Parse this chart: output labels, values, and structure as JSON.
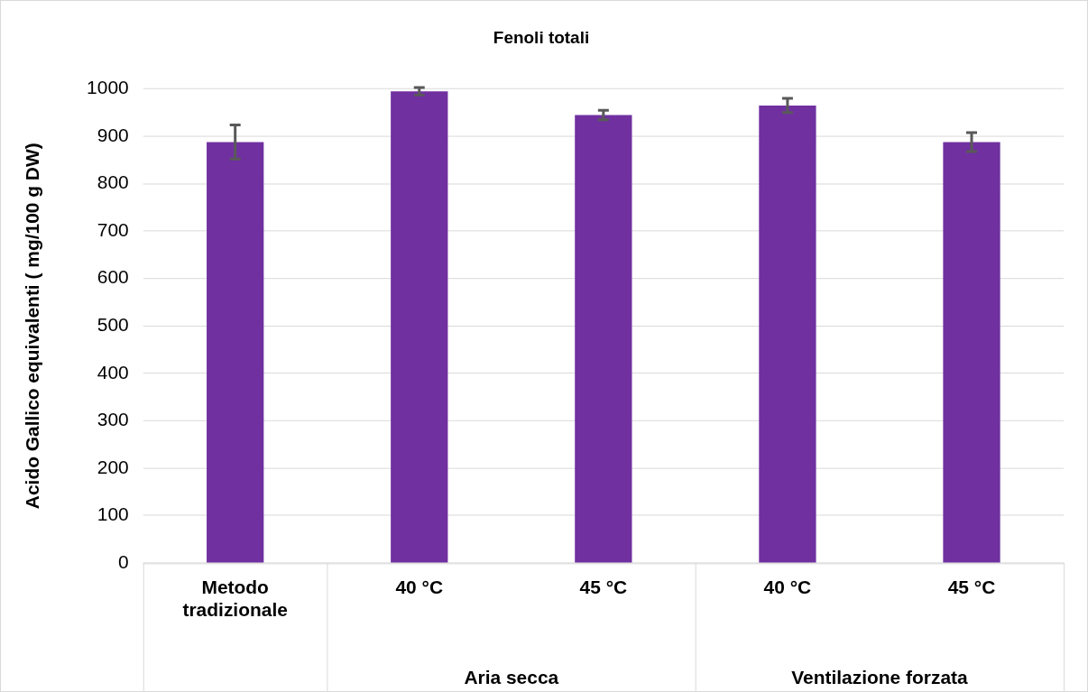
{
  "chart_data": {
    "type": "bar",
    "title": "Fenoli totali",
    "ylabel": "Acido Gallico equivalenti ( mg/100 g DW)",
    "categories": [
      "Metodo tradizionale",
      "40 °C",
      "45 °C",
      "40 °C",
      "45 °C"
    ],
    "values": [
      888,
      995,
      945,
      965,
      888
    ],
    "errors": [
      36,
      8,
      10,
      15,
      20
    ],
    "color": "#7030a0",
    "ylim": [
      0,
      1000
    ],
    "yticks": [
      0,
      100,
      200,
      300,
      400,
      500,
      600,
      700,
      800,
      900,
      1000
    ],
    "grid": "y",
    "legend": false,
    "annotations": [
      "Aria secca",
      "Ventilazione forzata"
    ]
  }
}
